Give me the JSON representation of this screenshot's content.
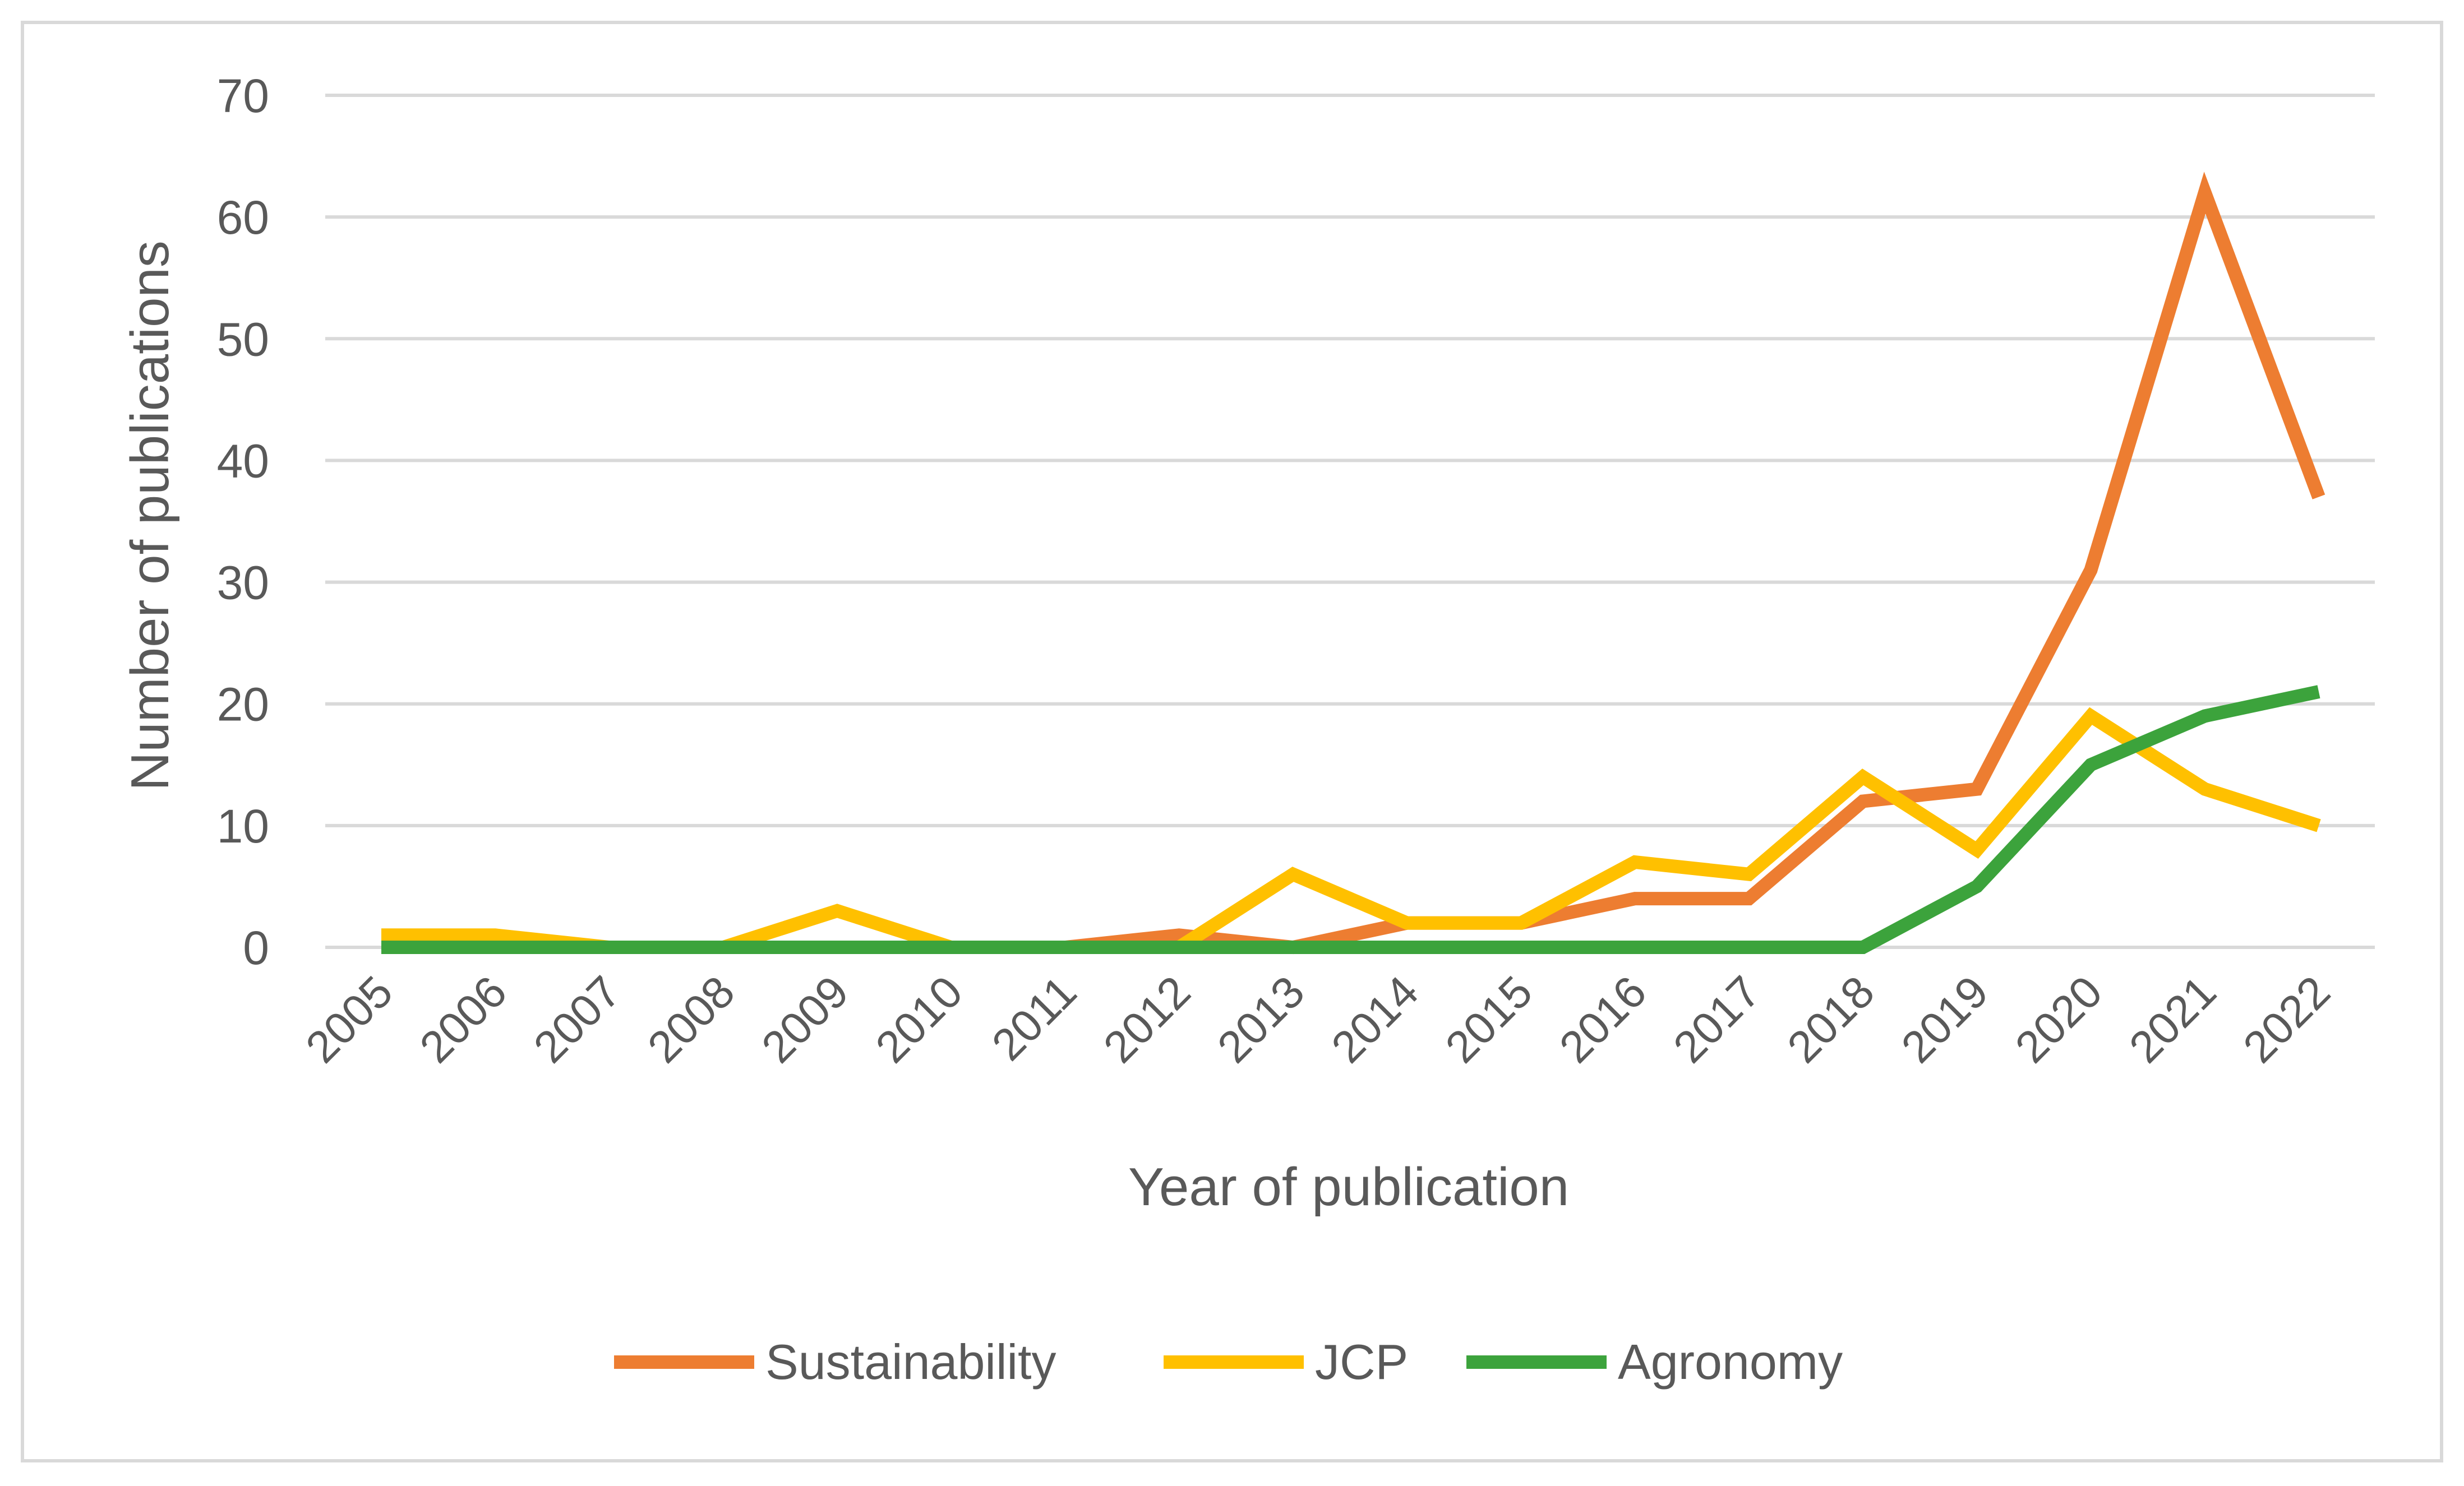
{
  "chart_data": {
    "type": "line",
    "title": "",
    "xlabel": "Year of publication",
    "ylabel": "Number of publications",
    "ylim": [
      0,
      70
    ],
    "yticks": [
      "0",
      "10",
      "20",
      "30",
      "40",
      "50",
      "60",
      "70"
    ],
    "grid": true,
    "legend_position": "bottom",
    "categories": [
      "2005",
      "2006",
      "2007",
      "2008",
      "2009",
      "2010",
      "2011",
      "2012",
      "2013",
      "2014",
      "2015",
      "2016",
      "2017",
      "2018",
      "2019",
      "2020",
      "2021",
      "2022"
    ],
    "series": [
      {
        "name": "Sustainability",
        "color": "#ED7D31",
        "values": [
          0,
          0,
          0,
          0,
          0,
          0,
          0,
          1,
          0,
          2,
          2,
          4,
          4,
          12,
          13,
          31,
          62,
          37
        ]
      },
      {
        "name": "JCP",
        "color": "#FFC000",
        "values": [
          1,
          1,
          0,
          0,
          3,
          0,
          0,
          0,
          6,
          2,
          2,
          7,
          6,
          14,
          8,
          19,
          13,
          10
        ]
      },
      {
        "name": "Agronomy",
        "color": "#3CA33C",
        "values": [
          0,
          0,
          0,
          0,
          0,
          0,
          0,
          0,
          0,
          0,
          0,
          0,
          0,
          0,
          5,
          15,
          19,
          21
        ]
      }
    ]
  },
  "style": {
    "background": "#FFFFFF",
    "frame_color": "#D9D9D9",
    "grid_color": "#D9D9D9",
    "text_color": "#595959"
  }
}
